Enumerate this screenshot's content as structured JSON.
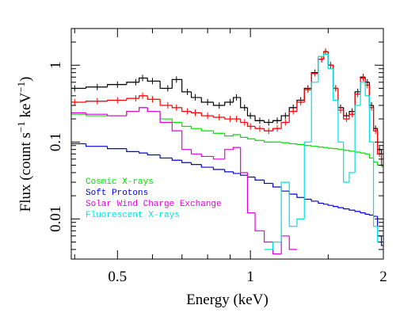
{
  "chart_data": {
    "type": "step",
    "xlabel": "Energy (keV)",
    "ylabel": [
      {
        "text": "Flux (count s"
      },
      {
        "text": "−1",
        "sup": true
      },
      {
        "text": " keV"
      },
      {
        "text": "−1",
        "sup": true
      },
      {
        "text": ")"
      }
    ],
    "xscale": "log",
    "yscale": "log",
    "xlim": [
      0.393,
      2
    ],
    "ylim": [
      0.003,
      3
    ],
    "xticks": [
      0.5,
      1,
      2
    ],
    "yticks": [
      0.01,
      0.1,
      1
    ],
    "xminorticks": [
      0.4,
      0.6,
      0.7,
      0.8,
      0.9,
      1.5
    ],
    "yminorticks": [
      0.003,
      0.004,
      0.005,
      0.006,
      0.007,
      0.008,
      0.009,
      0.02,
      0.03,
      0.04,
      0.05,
      0.06,
      0.07,
      0.08,
      0.09,
      0.2,
      0.3,
      0.4,
      0.5,
      0.6,
      0.7,
      0.8,
      0.9,
      2,
      3
    ],
    "x": [
      0.4,
      0.45,
      0.5,
      0.55,
      0.57,
      0.6,
      0.65,
      0.68,
      0.72,
      0.75,
      0.8,
      0.85,
      0.9,
      0.93,
      0.97,
      1.0,
      1.05,
      1.1,
      1.15,
      1.2,
      1.25,
      1.3,
      1.35,
      1.4,
      1.45,
      1.48,
      1.52,
      1.56,
      1.6,
      1.65,
      1.7,
      1.75,
      1.8,
      1.84,
      1.88,
      1.92,
      1.96,
      2.0
    ],
    "series": [
      {
        "color": "#000000",
        "markers": true,
        "values": [
          0.5,
          0.52,
          0.56,
          0.6,
          0.68,
          0.62,
          0.5,
          0.65,
          0.45,
          0.38,
          0.33,
          0.3,
          0.33,
          0.38,
          0.28,
          0.22,
          0.19,
          0.18,
          0.19,
          0.22,
          0.28,
          0.35,
          0.5,
          0.8,
          1.2,
          1.5,
          1.0,
          0.5,
          0.28,
          0.22,
          0.25,
          0.45,
          0.7,
          0.6,
          0.3,
          0.15,
          0.08,
          0.05
        ]
      },
      {
        "color": "#ff0000",
        "markers": true,
        "values": [
          0.33,
          0.34,
          0.35,
          0.37,
          0.4,
          0.36,
          0.3,
          0.28,
          0.25,
          0.24,
          0.22,
          0.21,
          0.2,
          0.2,
          0.18,
          0.16,
          0.15,
          0.14,
          0.15,
          0.18,
          0.25,
          0.33,
          0.48,
          0.78,
          1.2,
          1.5,
          1.0,
          0.5,
          0.26,
          0.2,
          0.23,
          0.42,
          0.68,
          0.55,
          0.28,
          0.14,
          0.07,
          0.05
        ]
      },
      {
        "name": "Cosmic X-rays",
        "color": "#00e000",
        "values": [
          0.23,
          0.22,
          0.22,
          0.25,
          0.28,
          0.25,
          0.2,
          0.18,
          0.16,
          0.15,
          0.14,
          0.13,
          0.12,
          0.125,
          0.115,
          0.11,
          0.105,
          0.1,
          0.1,
          0.098,
          0.095,
          0.093,
          0.09,
          0.088,
          0.086,
          0.085,
          0.083,
          0.082,
          0.08,
          0.078,
          0.076,
          0.074,
          0.072,
          0.07,
          0.062,
          0.055,
          0.05,
          0.048
        ]
      },
      {
        "name": "Soft Protons",
        "color": "#0000e0",
        "values": [
          0.095,
          0.088,
          0.082,
          0.075,
          0.072,
          0.068,
          0.062,
          0.058,
          0.054,
          0.051,
          0.047,
          0.044,
          0.041,
          0.039,
          0.037,
          0.035,
          0.032,
          0.029,
          0.026,
          0.023,
          0.021,
          0.019,
          0.018,
          0.017,
          0.016,
          0.0155,
          0.015,
          0.0145,
          0.014,
          0.0135,
          0.013,
          0.0125,
          0.012,
          0.0115,
          0.0112,
          0.0108,
          0.006,
          0.0045
        ]
      },
      {
        "name": "Solar Wind Charge Exchange",
        "color": "#e000e0",
        "values": [
          0.24,
          0.23,
          0.22,
          0.25,
          0.28,
          0.25,
          0.18,
          0.14,
          0.08,
          0.07,
          0.065,
          0.06,
          0.08,
          0.085,
          0.04,
          0.012,
          0.007,
          0.005,
          0.0035,
          0.006,
          0.004,
          null,
          null,
          null,
          null,
          null,
          null,
          null,
          null,
          null,
          null,
          null,
          null,
          null,
          null,
          null,
          null,
          null
        ]
      },
      {
        "name": "Fluorescent X-rays",
        "color": "#00e0e0",
        "values": [
          null,
          null,
          null,
          null,
          null,
          null,
          null,
          null,
          null,
          null,
          null,
          null,
          null,
          null,
          null,
          null,
          null,
          0.004,
          0.005,
          0.03,
          0.008,
          0.01,
          0.1,
          0.6,
          1.3,
          1.4,
          0.9,
          0.35,
          0.1,
          0.03,
          0.04,
          0.3,
          0.6,
          0.4,
          0.1,
          0.008,
          0.005,
          0.005
        ]
      }
    ]
  }
}
